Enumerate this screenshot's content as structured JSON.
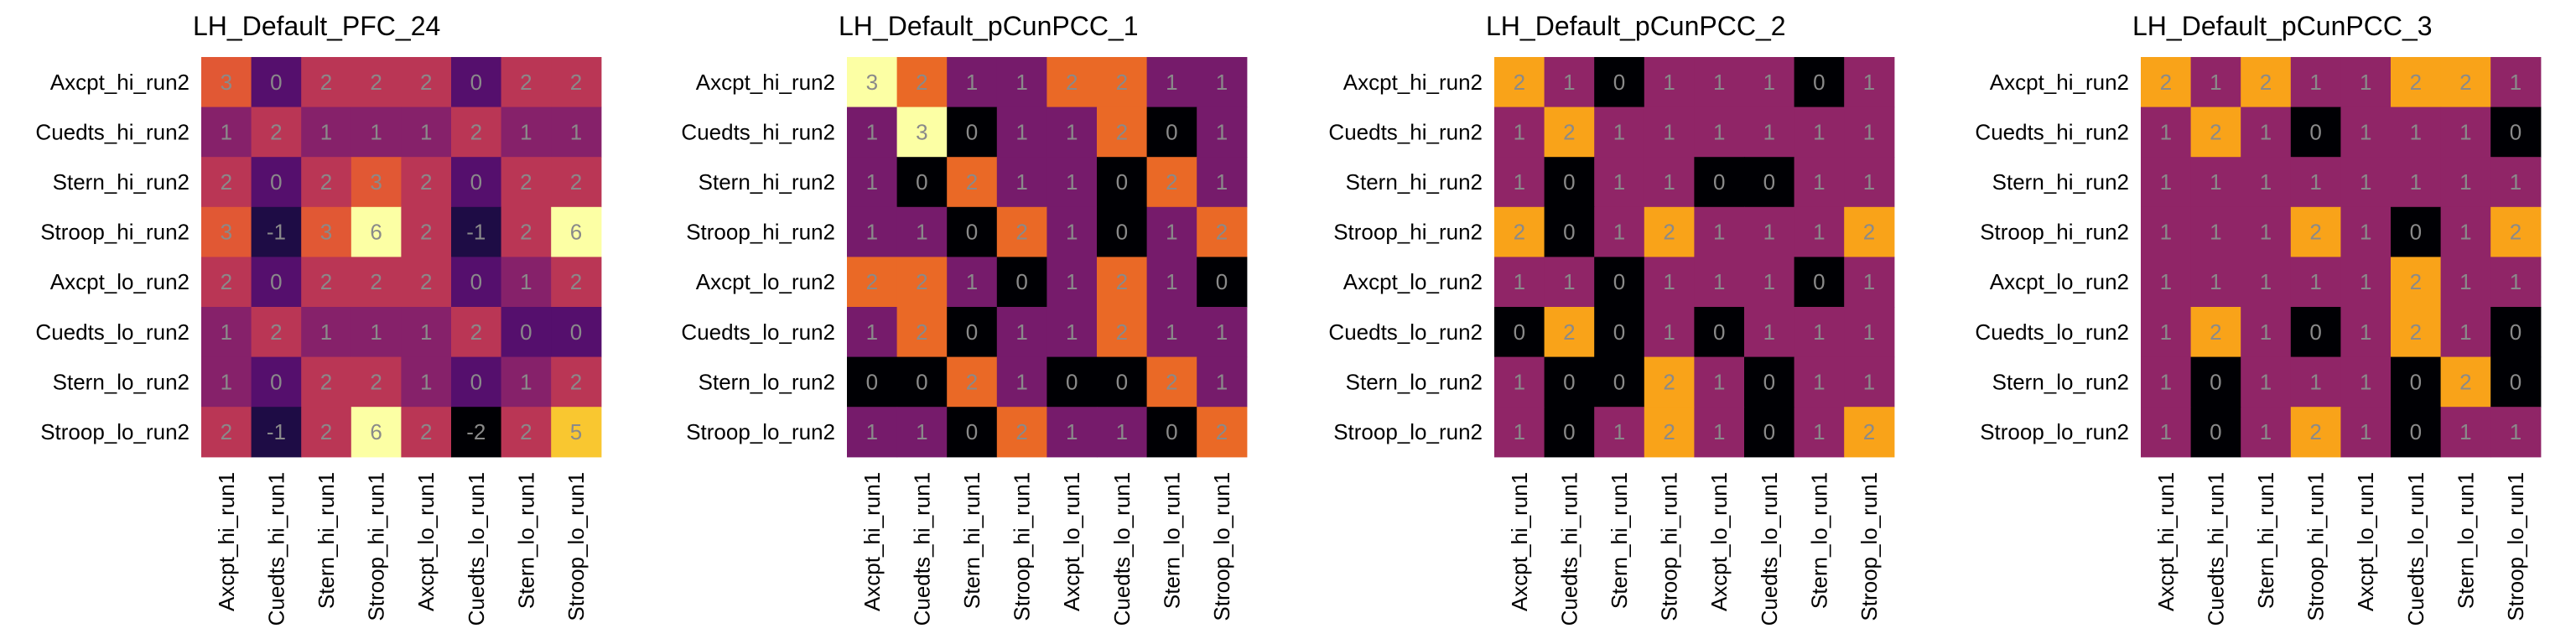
{
  "chart_data": [
    {
      "type": "heatmap",
      "title": "LH_Default_PFC_24",
      "rows": [
        "Axcpt_hi_run2",
        "Cuedts_hi_run2",
        "Stern_hi_run2",
        "Stroop_hi_run2",
        "Axcpt_lo_run2",
        "Cuedts_lo_run2",
        "Stern_lo_run2",
        "Stroop_lo_run2"
      ],
      "cols": [
        "Axcpt_hi_run1",
        "Cuedts_hi_run1",
        "Stern_hi_run1",
        "Stroop_hi_run1",
        "Axcpt_lo_run1",
        "Cuedts_lo_run1",
        "Stern_lo_run1",
        "Stroop_lo_run1"
      ],
      "vmin": -2,
      "vmax": 6,
      "values": [
        [
          3,
          0,
          2,
          2,
          2,
          0,
          2,
          2
        ],
        [
          1,
          2,
          1,
          1,
          1,
          2,
          1,
          1
        ],
        [
          2,
          0,
          2,
          3,
          2,
          0,
          2,
          2
        ],
        [
          3,
          -1,
          3,
          6,
          2,
          -1,
          2,
          6
        ],
        [
          2,
          0,
          2,
          2,
          2,
          0,
          1,
          2
        ],
        [
          1,
          2,
          1,
          1,
          1,
          2,
          0,
          0
        ],
        [
          1,
          0,
          2,
          2,
          1,
          0,
          1,
          2
        ],
        [
          2,
          -1,
          2,
          6,
          2,
          -2,
          2,
          5
        ]
      ]
    },
    {
      "type": "heatmap",
      "title": "LH_Default_pCunPCC_1",
      "rows": [
        "Axcpt_hi_run2",
        "Cuedts_hi_run2",
        "Stern_hi_run2",
        "Stroop_hi_run2",
        "Axcpt_lo_run2",
        "Cuedts_lo_run2",
        "Stern_lo_run2",
        "Stroop_lo_run2"
      ],
      "cols": [
        "Axcpt_hi_run1",
        "Cuedts_hi_run1",
        "Stern_hi_run1",
        "Stroop_hi_run1",
        "Axcpt_lo_run1",
        "Cuedts_lo_run1",
        "Stern_lo_run1",
        "Stroop_lo_run1"
      ],
      "vmin": 0,
      "vmax": 3,
      "values": [
        [
          3,
          2,
          1,
          1,
          2,
          2,
          1,
          1
        ],
        [
          1,
          3,
          0,
          1,
          1,
          2,
          0,
          1
        ],
        [
          1,
          0,
          2,
          1,
          1,
          0,
          2,
          1
        ],
        [
          1,
          1,
          0,
          2,
          1,
          0,
          1,
          2
        ],
        [
          2,
          2,
          1,
          0,
          1,
          2,
          1,
          0
        ],
        [
          1,
          2,
          0,
          1,
          1,
          2,
          1,
          1
        ],
        [
          0,
          0,
          2,
          1,
          0,
          0,
          2,
          1
        ],
        [
          1,
          1,
          0,
          2,
          1,
          1,
          0,
          2
        ]
      ]
    },
    {
      "type": "heatmap",
      "title": "LH_Default_pCunPCC_2",
      "rows": [
        "Axcpt_hi_run2",
        "Cuedts_hi_run2",
        "Stern_hi_run2",
        "Stroop_hi_run2",
        "Axcpt_lo_run2",
        "Cuedts_lo_run2",
        "Stern_lo_run2",
        "Stroop_lo_run2"
      ],
      "cols": [
        "Axcpt_hi_run1",
        "Cuedts_hi_run1",
        "Stern_hi_run1",
        "Stroop_hi_run1",
        "Axcpt_lo_run1",
        "Cuedts_lo_run1",
        "Stern_lo_run1",
        "Stroop_lo_run1"
      ],
      "vmin": 0,
      "vmax": 2.5,
      "values": [
        [
          2,
          1,
          0,
          1,
          1,
          1,
          0,
          1
        ],
        [
          1,
          2,
          1,
          1,
          1,
          1,
          1,
          1
        ],
        [
          1,
          0,
          1,
          1,
          0,
          0,
          1,
          1
        ],
        [
          2,
          0,
          1,
          2,
          1,
          1,
          1,
          2
        ],
        [
          1,
          1,
          0,
          1,
          1,
          1,
          0,
          1
        ],
        [
          0,
          2,
          0,
          1,
          0,
          1,
          1,
          1
        ],
        [
          1,
          0,
          0,
          2,
          1,
          0,
          1,
          1
        ],
        [
          1,
          0,
          1,
          2,
          1,
          0,
          1,
          2
        ]
      ]
    },
    {
      "type": "heatmap",
      "title": "LH_Default_pCunPCC_3",
      "rows": [
        "Axcpt_hi_run2",
        "Cuedts_hi_run2",
        "Stern_hi_run2",
        "Stroop_hi_run2",
        "Axcpt_lo_run2",
        "Cuedts_lo_run2",
        "Stern_lo_run2",
        "Stroop_lo_run2"
      ],
      "cols": [
        "Axcpt_hi_run1",
        "Cuedts_hi_run1",
        "Stern_hi_run1",
        "Stroop_hi_run1",
        "Axcpt_lo_run1",
        "Cuedts_lo_run1",
        "Stern_lo_run1",
        "Stroop_lo_run1"
      ],
      "vmin": 0,
      "vmax": 2.5,
      "values": [
        [
          2,
          1,
          2,
          1,
          1,
          2,
          2,
          1
        ],
        [
          1,
          2,
          1,
          0,
          1,
          1,
          1,
          0
        ],
        [
          1,
          1,
          1,
          1,
          1,
          1,
          1,
          1
        ],
        [
          1,
          1,
          1,
          2,
          1,
          0,
          1,
          2
        ],
        [
          1,
          1,
          1,
          1,
          1,
          2,
          1,
          1
        ],
        [
          1,
          2,
          1,
          0,
          1,
          2,
          1,
          0
        ],
        [
          1,
          0,
          1,
          1,
          1,
          0,
          2,
          0
        ],
        [
          1,
          0,
          1,
          2,
          1,
          0,
          1,
          1
        ]
      ]
    }
  ]
}
